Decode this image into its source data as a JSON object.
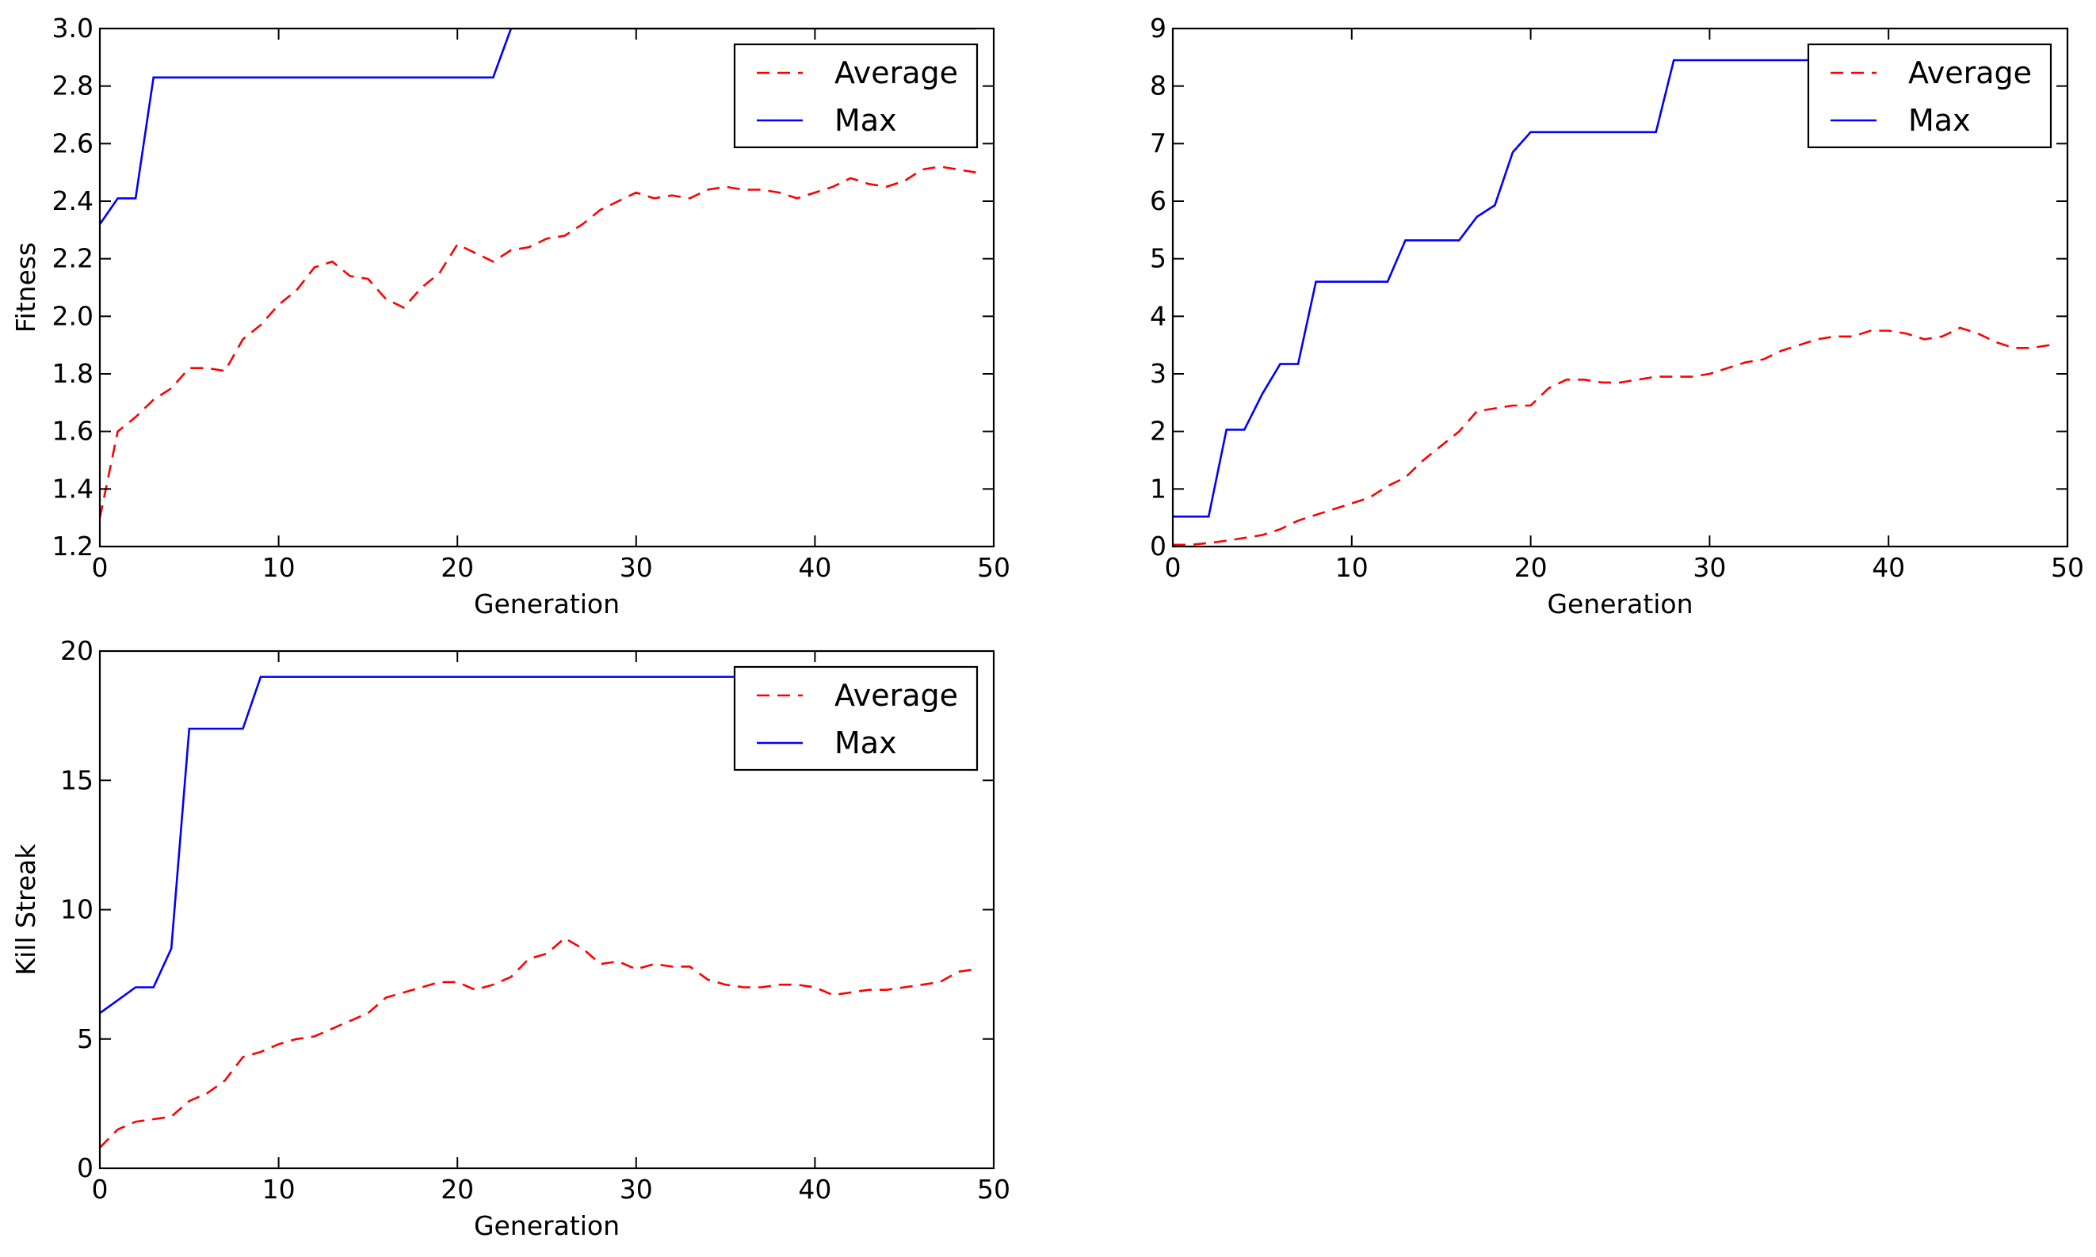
{
  "chart_data": [
    {
      "type": "line",
      "title": "",
      "xlabel": "Generation",
      "ylabel": "Fitness",
      "xlim": [
        0,
        50
      ],
      "ylim": [
        1.2,
        3.0
      ],
      "xticks": [
        0,
        10,
        20,
        30,
        40,
        50
      ],
      "xtick_labels": [
        "0",
        "10",
        "20",
        "30",
        "40",
        "50"
      ],
      "yticks": [
        1.2,
        1.4,
        1.6,
        1.8,
        2.0,
        2.2,
        2.4,
        2.6,
        2.8,
        3.0
      ],
      "ytick_labels": [
        "1.2",
        "1.4",
        "1.6",
        "1.8",
        "2.0",
        "2.2",
        "2.4",
        "2.6",
        "2.8",
        "3.0"
      ],
      "grid": false,
      "legend": "top-right",
      "series": [
        {
          "name": "Average",
          "color": "#ff0000",
          "style": "dashed",
          "x": [
            0,
            1,
            2,
            3,
            4,
            5,
            6,
            7,
            8,
            9,
            10,
            11,
            12,
            13,
            14,
            15,
            16,
            17,
            18,
            19,
            20,
            21,
            22,
            23,
            24,
            25,
            26,
            27,
            28,
            29,
            30,
            31,
            32,
            33,
            34,
            35,
            36,
            37,
            38,
            39,
            40,
            41,
            42,
            43,
            44,
            45,
            46,
            47,
            48,
            49
          ],
          "values": [
            1.3,
            1.6,
            1.65,
            1.71,
            1.75,
            1.82,
            1.82,
            1.81,
            1.92,
            1.97,
            2.04,
            2.09,
            2.17,
            2.19,
            2.14,
            2.13,
            2.06,
            2.03,
            2.1,
            2.15,
            2.25,
            2.22,
            2.19,
            2.23,
            2.24,
            2.27,
            2.28,
            2.32,
            2.37,
            2.4,
            2.43,
            2.41,
            2.42,
            2.41,
            2.44,
            2.45,
            2.44,
            2.44,
            2.43,
            2.41,
            2.43,
            2.45,
            2.48,
            2.46,
            2.45,
            2.47,
            2.51,
            2.52,
            2.51,
            2.5
          ]
        },
        {
          "name": "Max",
          "color": "#0000ff",
          "style": "solid",
          "x": [
            0,
            1,
            2,
            3,
            4,
            5,
            6,
            7,
            8,
            9,
            10,
            11,
            12,
            13,
            14,
            15,
            16,
            17,
            18,
            19,
            20,
            21,
            22,
            23,
            24,
            25,
            26,
            27,
            28,
            29,
            30,
            31,
            32,
            33,
            34,
            35,
            36,
            37,
            38,
            39,
            40,
            41,
            42,
            43,
            44,
            45,
            46,
            47,
            48,
            49
          ],
          "values": [
            2.32,
            2.41,
            2.41,
            2.83,
            2.83,
            2.83,
            2.83,
            2.83,
            2.83,
            2.83,
            2.83,
            2.83,
            2.83,
            2.83,
            2.83,
            2.83,
            2.83,
            2.83,
            2.83,
            2.83,
            2.83,
            2.83,
            2.83,
            3.0,
            3.0,
            3.0,
            3.0,
            3.0,
            3.0,
            3.0,
            3.0,
            3.0,
            3.0,
            3.0,
            3.0,
            3.0,
            3.0,
            3.0,
            3.0,
            3.0,
            3.0,
            3.0,
            3.0,
            3.0,
            3.0,
            3.0,
            3.0,
            3.0,
            3.0,
            3.0
          ]
        }
      ]
    },
    {
      "type": "line",
      "title": "",
      "xlabel": "Generation",
      "ylabel": "",
      "xlim": [
        0,
        50
      ],
      "ylim": [
        0,
        9
      ],
      "xticks": [
        0,
        10,
        20,
        30,
        40,
        50
      ],
      "xtick_labels": [
        "0",
        "10",
        "20",
        "30",
        "40",
        "50"
      ],
      "yticks": [
        0,
        1,
        2,
        3,
        4,
        5,
        6,
        7,
        8,
        9
      ],
      "ytick_labels": [
        "0",
        "1",
        "2",
        "3",
        "4",
        "5",
        "6",
        "7",
        "8",
        "9"
      ],
      "grid": false,
      "legend": "top-right",
      "series": [
        {
          "name": "Average",
          "color": "#ff0000",
          "style": "dashed",
          "x": [
            0,
            1,
            2,
            3,
            4,
            5,
            6,
            7,
            8,
            9,
            10,
            11,
            12,
            13,
            14,
            15,
            16,
            17,
            18,
            19,
            20,
            21,
            22,
            23,
            24,
            25,
            26,
            27,
            28,
            29,
            30,
            31,
            32,
            33,
            34,
            35,
            36,
            37,
            38,
            39,
            40,
            41,
            42,
            43,
            44,
            45,
            46,
            47,
            48,
            49
          ],
          "values": [
            0.03,
            0.03,
            0.06,
            0.1,
            0.15,
            0.2,
            0.3,
            0.45,
            0.55,
            0.65,
            0.75,
            0.85,
            1.05,
            1.2,
            1.5,
            1.75,
            2.0,
            2.35,
            2.4,
            2.45,
            2.45,
            2.75,
            2.9,
            2.9,
            2.85,
            2.85,
            2.9,
            2.95,
            2.95,
            2.95,
            3.0,
            3.1,
            3.2,
            3.25,
            3.4,
            3.5,
            3.6,
            3.65,
            3.65,
            3.75,
            3.75,
            3.7,
            3.6,
            3.65,
            3.8,
            3.7,
            3.55,
            3.45,
            3.45,
            3.5
          ]
        },
        {
          "name": "Max",
          "color": "#0000ff",
          "style": "solid",
          "x": [
            0,
            1,
            2,
            3,
            4,
            5,
            6,
            7,
            8,
            9,
            10,
            11,
            12,
            13,
            14,
            15,
            16,
            17,
            18,
            19,
            20,
            21,
            22,
            23,
            24,
            25,
            26,
            27,
            28,
            29,
            30,
            31,
            32,
            33,
            34,
            35,
            36,
            37,
            38,
            39,
            40,
            41,
            42,
            43,
            44,
            45,
            46,
            47,
            48,
            49
          ],
          "values": [
            0.52,
            0.52,
            0.52,
            2.03,
            2.03,
            2.65,
            3.17,
            3.17,
            4.6,
            4.6,
            4.6,
            4.6,
            4.6,
            5.32,
            5.32,
            5.32,
            5.32,
            5.73,
            5.93,
            6.85,
            7.2,
            7.2,
            7.2,
            7.2,
            7.2,
            7.2,
            7.2,
            7.2,
            8.45,
            8.45,
            8.45,
            8.45,
            8.45,
            8.45,
            8.45,
            8.45,
            8.45,
            8.45,
            8.45,
            8.45,
            8.45,
            8.45,
            8.45,
            8.45,
            8.45,
            8.45,
            8.45,
            8.45,
            8.45,
            8.45
          ]
        }
      ]
    },
    {
      "type": "line",
      "title": "",
      "xlabel": "Generation",
      "ylabel": "Kill Streak",
      "xlim": [
        0,
        50
      ],
      "ylim": [
        0,
        20
      ],
      "xticks": [
        0,
        10,
        20,
        30,
        40,
        50
      ],
      "xtick_labels": [
        "0",
        "10",
        "20",
        "30",
        "40",
        "50"
      ],
      "yticks": [
        0,
        5,
        10,
        15,
        20
      ],
      "ytick_labels": [
        "0",
        "5",
        "10",
        "15",
        "20"
      ],
      "grid": false,
      "legend": "top-right",
      "series": [
        {
          "name": "Average",
          "color": "#ff0000",
          "style": "dashed",
          "x": [
            0,
            1,
            2,
            3,
            4,
            5,
            6,
            7,
            8,
            9,
            10,
            11,
            12,
            13,
            14,
            15,
            16,
            17,
            18,
            19,
            20,
            21,
            22,
            23,
            24,
            25,
            26,
            27,
            28,
            29,
            30,
            31,
            32,
            33,
            34,
            35,
            36,
            37,
            38,
            39,
            40,
            41,
            42,
            43,
            44,
            45,
            46,
            47,
            48,
            49
          ],
          "values": [
            0.8,
            1.5,
            1.8,
            1.9,
            2.0,
            2.6,
            2.9,
            3.4,
            4.3,
            4.5,
            4.8,
            5.0,
            5.1,
            5.4,
            5.7,
            6.0,
            6.6,
            6.8,
            7.0,
            7.2,
            7.2,
            6.9,
            7.1,
            7.4,
            8.1,
            8.3,
            8.9,
            8.5,
            7.9,
            8.0,
            7.7,
            7.9,
            7.8,
            7.8,
            7.3,
            7.1,
            7.0,
            7.0,
            7.1,
            7.1,
            7.0,
            6.7,
            6.8,
            6.9,
            6.9,
            7.0,
            7.1,
            7.2,
            7.6,
            7.7
          ]
        },
        {
          "name": "Max",
          "color": "#0000ff",
          "style": "solid",
          "x": [
            0,
            1,
            2,
            3,
            4,
            5,
            6,
            7,
            8,
            9,
            10,
            11,
            12,
            13,
            14,
            15,
            16,
            17,
            18,
            19,
            20,
            21,
            22,
            23,
            24,
            25,
            26,
            27,
            28,
            29,
            30,
            31,
            32,
            33,
            34,
            35,
            36,
            37,
            38,
            39,
            40,
            41,
            42,
            43,
            44,
            45,
            46,
            47,
            48,
            49
          ],
          "values": [
            6,
            6.5,
            7,
            7,
            8.5,
            17,
            17,
            17,
            17,
            19,
            19,
            19,
            19,
            19,
            19,
            19,
            19,
            19,
            19,
            19,
            19,
            19,
            19,
            19,
            19,
            19,
            19,
            19,
            19,
            19,
            19,
            19,
            19,
            19,
            19,
            19,
            19,
            19,
            19,
            19,
            19,
            19,
            19,
            19,
            19,
            19,
            19,
            19,
            19,
            19
          ]
        }
      ]
    }
  ]
}
